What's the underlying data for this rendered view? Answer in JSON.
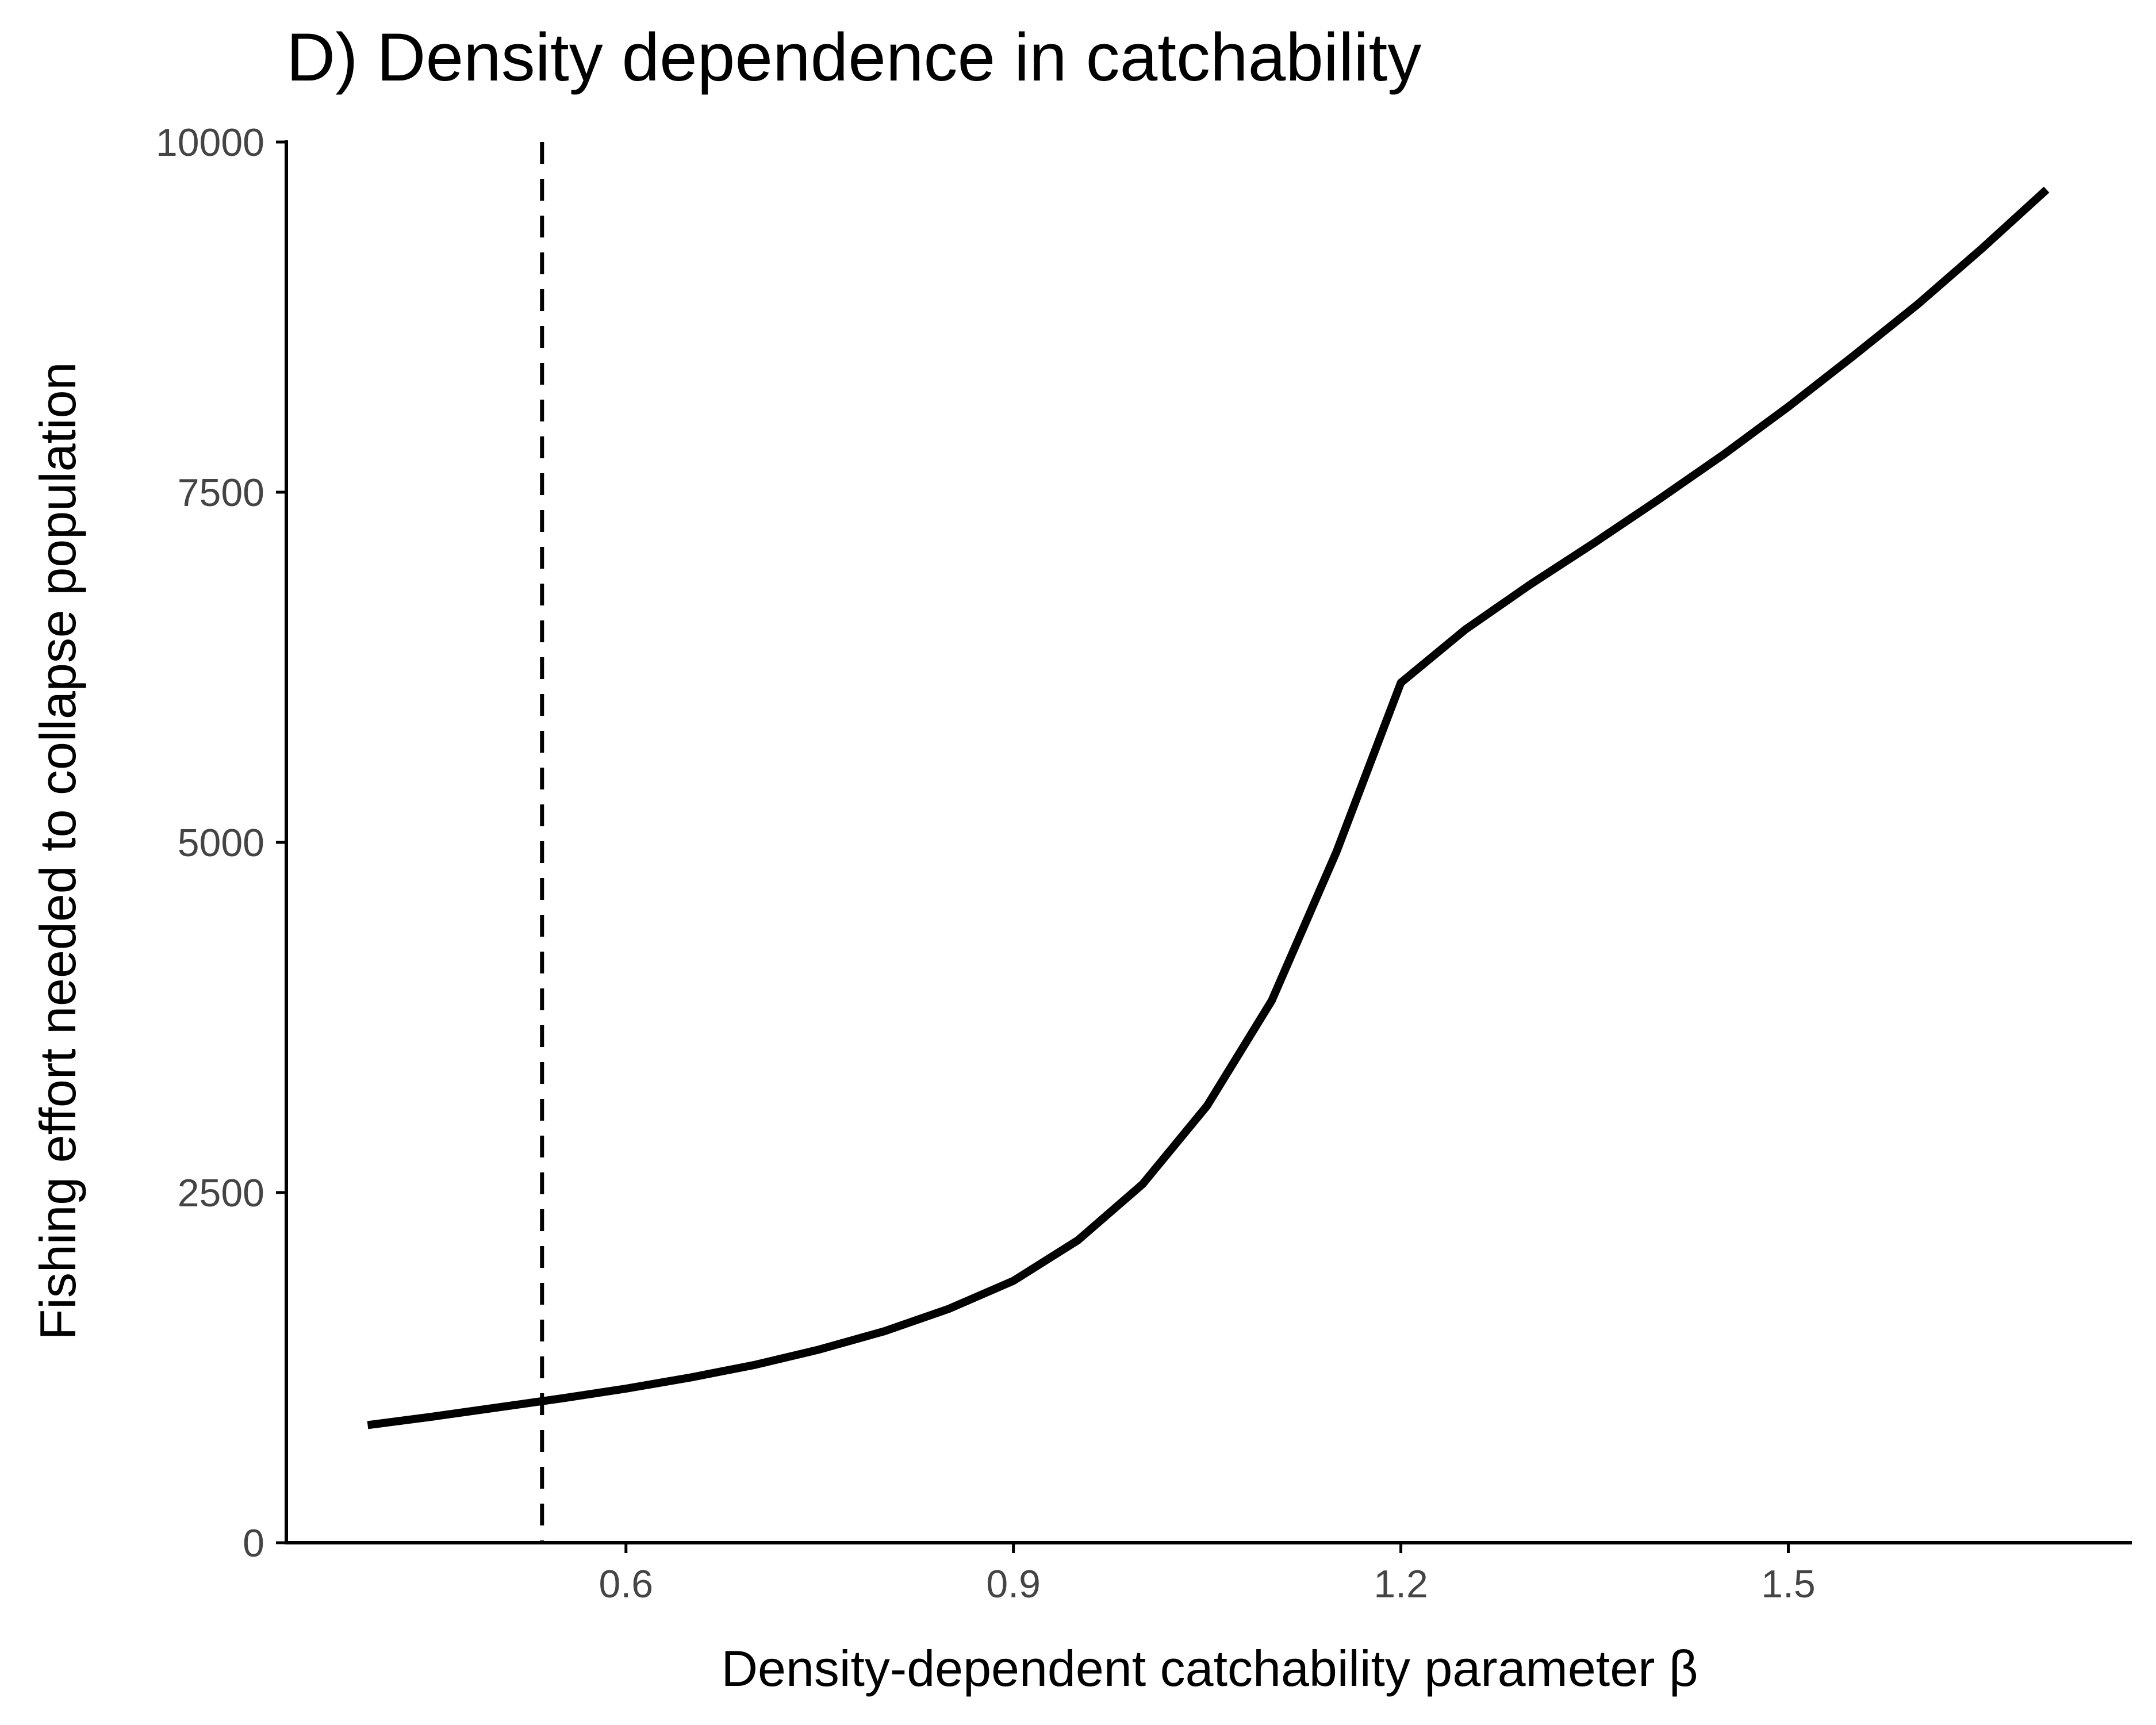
{
  "chart_data": {
    "type": "line",
    "title": "D) Density dependence in catchability",
    "xlabel": "Density-dependent catchability parameter β",
    "ylabel": "Fishing effort needed to collapse population",
    "xlim": [
      0.337,
      1.766
    ],
    "ylim": [
      0,
      10000
    ],
    "x_ticks": [
      0.6,
      0.9,
      1.2,
      1.5
    ],
    "x_tick_labels": [
      "0.6",
      "0.9",
      "1.2",
      "1.5"
    ],
    "y_ticks": [
      0,
      2500,
      5000,
      7500,
      10000
    ],
    "y_tick_labels": [
      "0",
      "2500",
      "5000",
      "7500",
      "10000"
    ],
    "grid": false,
    "legend": "none",
    "reference_line": {
      "orientation": "vertical",
      "x": 0.535,
      "style": "dashed"
    },
    "series": [
      {
        "x": [
          0.4,
          0.45,
          0.5,
          0.55,
          0.6,
          0.65,
          0.7,
          0.75,
          0.8,
          0.85,
          0.9,
          0.95,
          1.0,
          1.05,
          1.1,
          1.15,
          1.2,
          1.25,
          1.3,
          1.35,
          1.4,
          1.45,
          1.5,
          1.55,
          1.6,
          1.65,
          1.7
        ],
        "values": [
          840,
          900,
          965,
          1030,
          1100,
          1180,
          1270,
          1380,
          1510,
          1670,
          1870,
          2160,
          2560,
          3120,
          3870,
          4930,
          6140,
          6520,
          6840,
          7140,
          7450,
          7770,
          8110,
          8470,
          8840,
          9240,
          9660
        ]
      }
    ],
    "colors": {
      "line": "#000000",
      "axis": "#000000",
      "tick_label": "#444444",
      "background": "#ffffff"
    }
  }
}
